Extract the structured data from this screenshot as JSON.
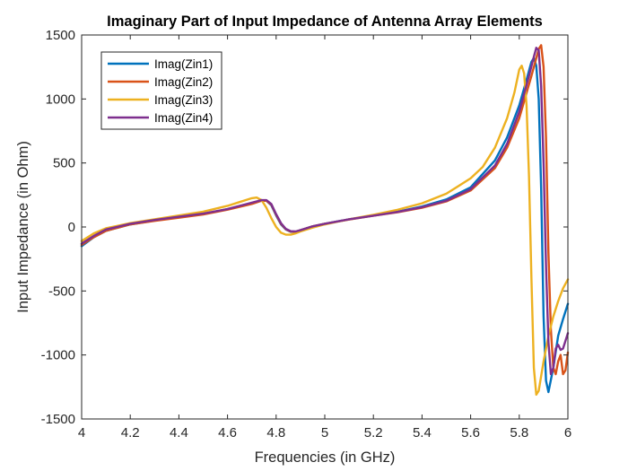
{
  "chart_data": {
    "type": "line",
    "title": "Imaginary Part of Input Impedance of Antenna Array Elements",
    "xlabel": "Frequencies (in GHz)",
    "ylabel": "Input Impedance (in Ohm)",
    "xlim": [
      4,
      6
    ],
    "ylim": [
      -1500,
      1500
    ],
    "xticks": [
      4,
      4.2,
      4.4,
      4.6,
      4.8,
      5,
      5.2,
      5.4,
      5.6,
      5.8,
      6
    ],
    "xtick_labels": [
      "4",
      "4.2",
      "4.4",
      "4.6",
      "4.8",
      "5",
      "5.2",
      "5.4",
      "5.6",
      "5.8",
      "6"
    ],
    "yticks": [
      -1500,
      -1000,
      -500,
      0,
      500,
      1000,
      1500
    ],
    "ytick_labels": [
      "-1500",
      "-1000",
      "-500",
      "0",
      "500",
      "1000",
      "1500"
    ],
    "grid": false,
    "legend": {
      "position": "top-left",
      "boxed": true
    },
    "series": [
      {
        "name": "Imag(Zin1)",
        "color": "#0072BD",
        "x": [
          4.0,
          4.05,
          4.1,
          4.2,
          4.3,
          4.4,
          4.5,
          4.6,
          4.7,
          4.74,
          4.76,
          4.78,
          4.8,
          4.82,
          4.84,
          4.86,
          4.88,
          4.9,
          4.95,
          5.0,
          5.1,
          5.2,
          5.3,
          5.4,
          5.5,
          5.6,
          5.7,
          5.75,
          5.8,
          5.83,
          5.85,
          5.86,
          5.87,
          5.88,
          5.89,
          5.9,
          5.91,
          5.92,
          5.94,
          5.96,
          5.98,
          6.0
        ],
        "y": [
          -150,
          -80,
          -30,
          20,
          50,
          75,
          100,
          140,
          185,
          210,
          205,
          170,
          90,
          20,
          -20,
          -38,
          -38,
          -25,
          5,
          25,
          60,
          90,
          120,
          160,
          215,
          310,
          520,
          700,
          950,
          1150,
          1290,
          1320,
          1260,
          1000,
          300,
          -700,
          -1200,
          -1290,
          -1100,
          -850,
          -720,
          -600
        ]
      },
      {
        "name": "Imag(Zin2)",
        "color": "#D95319",
        "x": [
          4.0,
          4.05,
          4.1,
          4.2,
          4.3,
          4.4,
          4.5,
          4.6,
          4.7,
          4.74,
          4.76,
          4.78,
          4.8,
          4.82,
          4.84,
          4.86,
          4.88,
          4.9,
          4.95,
          5.0,
          5.1,
          5.2,
          5.3,
          5.4,
          5.5,
          5.6,
          5.7,
          5.75,
          5.8,
          5.85,
          5.87,
          5.88,
          5.89,
          5.9,
          5.91,
          5.92,
          5.93,
          5.94,
          5.95,
          5.96,
          5.97,
          5.98,
          5.99,
          6.0
        ],
        "y": [
          -140,
          -80,
          -30,
          20,
          48,
          72,
          98,
          135,
          180,
          205,
          205,
          175,
          95,
          25,
          -18,
          -36,
          -37,
          -25,
          5,
          25,
          58,
          88,
          115,
          150,
          200,
          285,
          460,
          620,
          850,
          1180,
          1320,
          1390,
          1420,
          1250,
          700,
          -200,
          -800,
          -1100,
          -1150,
          -1050,
          -1000,
          -1150,
          -1120,
          -980
        ]
      },
      {
        "name": "Imag(Zin3)",
        "color": "#EDB120",
        "x": [
          4.0,
          4.05,
          4.1,
          4.2,
          4.3,
          4.4,
          4.5,
          4.6,
          4.65,
          4.7,
          4.72,
          4.74,
          4.76,
          4.78,
          4.8,
          4.82,
          4.84,
          4.86,
          4.88,
          4.9,
          4.95,
          5.0,
          5.1,
          5.2,
          5.3,
          5.4,
          5.5,
          5.6,
          5.65,
          5.7,
          5.75,
          5.78,
          5.8,
          5.81,
          5.82,
          5.83,
          5.84,
          5.85,
          5.86,
          5.87,
          5.88,
          5.9,
          5.92,
          5.94,
          5.96,
          5.98,
          6.0
        ],
        "y": [
          -110,
          -50,
          -10,
          30,
          60,
          90,
          120,
          165,
          195,
          225,
          230,
          210,
          150,
          70,
          0,
          -45,
          -60,
          -60,
          -50,
          -35,
          -5,
          20,
          60,
          95,
          135,
          185,
          260,
          380,
          470,
          620,
          850,
          1050,
          1230,
          1260,
          1200,
          950,
          400,
          -400,
          -1100,
          -1310,
          -1280,
          -1050,
          -850,
          -700,
          -580,
          -480,
          -410
        ]
      },
      {
        "name": "Imag(Zin4)",
        "color": "#7E2F8E",
        "x": [
          4.0,
          4.05,
          4.1,
          4.2,
          4.3,
          4.4,
          4.5,
          4.6,
          4.7,
          4.74,
          4.76,
          4.78,
          4.8,
          4.82,
          4.84,
          4.86,
          4.88,
          4.9,
          4.95,
          5.0,
          5.1,
          5.2,
          5.3,
          5.4,
          5.5,
          5.6,
          5.7,
          5.75,
          5.8,
          5.84,
          5.86,
          5.87,
          5.88,
          5.89,
          5.9,
          5.91,
          5.92,
          5.93,
          5.94,
          5.95,
          5.96,
          5.97,
          5.98,
          6.0
        ],
        "y": [
          -130,
          -70,
          -20,
          25,
          55,
          80,
          105,
          140,
          190,
          210,
          210,
          180,
          100,
          30,
          -15,
          -33,
          -35,
          -25,
          5,
          25,
          60,
          88,
          118,
          155,
          205,
          295,
          480,
          650,
          900,
          1180,
          1330,
          1400,
          1380,
          1100,
          500,
          -300,
          -900,
          -1150,
          -1100,
          -950,
          -920,
          -960,
          -950,
          -830
        ]
      }
    ]
  }
}
